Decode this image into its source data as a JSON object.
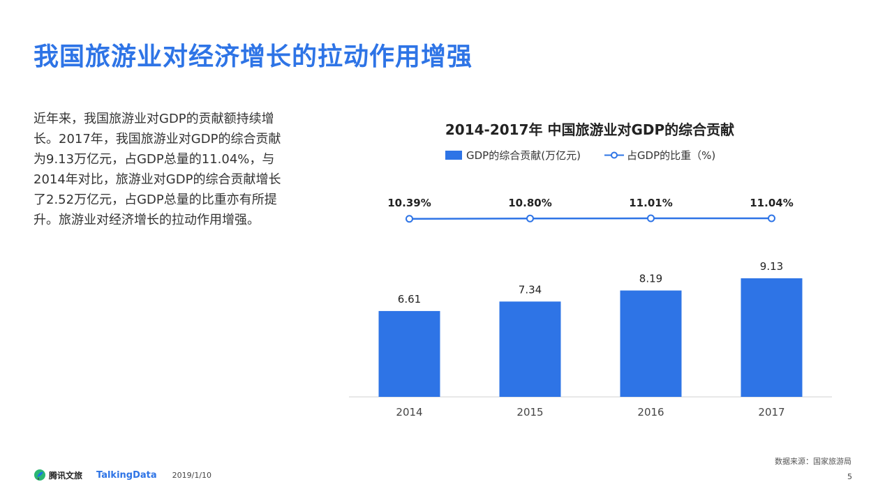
{
  "page": {
    "title": "我国旅游业对经济增长的拉动作用增强",
    "paragraph_lines": [
      "近年来，我国旅游业对GDP的贡献额持续增",
      "长。2017年，我国旅游业对GDP的综合贡献",
      "为9.13万亿元，占GDP总量的11.04%，与",
      "2014年对比，旅游业对GDP的综合贡献增长",
      "了2.52万亿元，占GDP总量的比重亦有所提",
      "升。旅游业对经济增长的拉动作用增强。"
    ],
    "source": "数据来源：国家旅游局",
    "footer": {
      "logo_text": "腾讯文旅",
      "logo_td": "TalkingData",
      "date": "2019/1/10",
      "page_number": "5"
    }
  },
  "colors": {
    "accent": "#2e74e6",
    "bar": "#2e74e6",
    "line": "#2e74e6"
  },
  "chart_data": {
    "type": "bar",
    "title": "2014-2017年 中国旅游业对GDP的综合贡献",
    "categories": [
      "2014",
      "2015",
      "2016",
      "2017"
    ],
    "series": [
      {
        "name": "GDP的综合贡献(万亿元)",
        "type": "bar",
        "values": [
          6.61,
          7.34,
          8.19,
          9.13
        ]
      },
      {
        "name": "占GDP的比重（%)",
        "type": "line",
        "values": [
          10.39,
          10.8,
          11.01,
          11.04
        ],
        "labels": [
          "10.39%",
          "10.80%",
          "11.01%",
          "11.04%"
        ]
      }
    ],
    "legend_position": "top",
    "grid": false
  }
}
